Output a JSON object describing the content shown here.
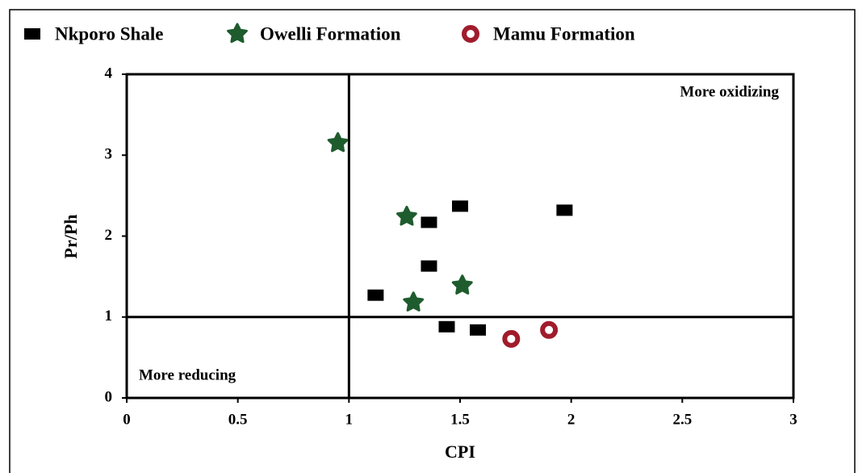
{
  "chart_data": {
    "type": "scatter",
    "x_label": "CPI",
    "y_label": "Pr/Ph",
    "xlim": [
      0,
      3
    ],
    "xticks": [
      0,
      0.5,
      1,
      1.5,
      2,
      2.5,
      3
    ],
    "ylim": [
      0,
      4
    ],
    "yticks": [
      0,
      1,
      2,
      3,
      4
    ],
    "vlines": [
      1
    ],
    "hlines": [
      1
    ],
    "annotations": [
      "More oxidizing",
      "More reducing"
    ],
    "legend": "top",
    "series": [
      {
        "name": "Nkporo Shale",
        "color": "#000000",
        "marker": "square",
        "x": [
          1.12,
          1.36,
          1.5,
          1.97,
          1.36,
          1.44,
          1.58
        ],
        "values": [
          1.27,
          2.17,
          2.37,
          2.32,
          1.63,
          0.88,
          0.84
        ]
      },
      {
        "name": "Owelli Formation",
        "color": "#1e5c2e",
        "marker": "star",
        "x": [
          0.95,
          1.26,
          1.51,
          1.29
        ],
        "values": [
          3.15,
          2.24,
          1.39,
          1.18
        ]
      },
      {
        "name": "Mamu Formation",
        "color": "#a01c2c",
        "marker": "circle",
        "x": [
          1.73,
          1.9
        ],
        "values": [
          0.73,
          0.84
        ]
      }
    ]
  }
}
